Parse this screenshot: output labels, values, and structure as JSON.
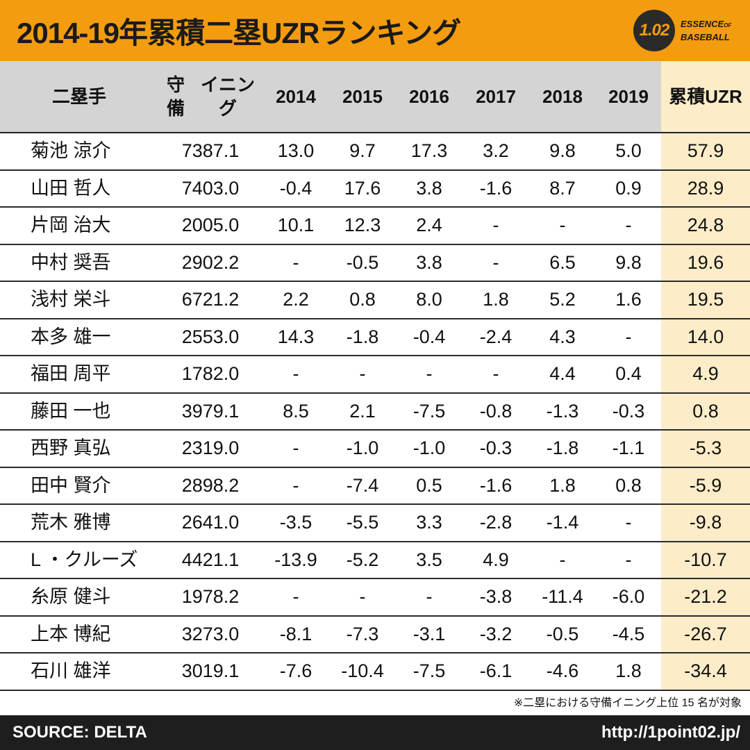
{
  "header": {
    "title": "2014-19年累積二塁UZRランキング",
    "logo": {
      "mark": "1.02",
      "line1": "ESSENCE",
      "of": "OF",
      "line2": "BASEBALL"
    }
  },
  "colors": {
    "header_bg": "#f39c0f",
    "table_header_bg": "#d4d4d4",
    "highlight_col": "#fdecc8",
    "footer_bg": "#1e1e1e"
  },
  "chart_data": {
    "type": "table",
    "title": "2014-19年累積二塁UZRランキング",
    "columns": [
      {
        "key": "name",
        "label": "二塁手"
      },
      {
        "key": "innings",
        "label": "守備\nイニング"
      },
      {
        "key": "y2014",
        "label": "2014"
      },
      {
        "key": "y2015",
        "label": "2015"
      },
      {
        "key": "y2016",
        "label": "2016"
      },
      {
        "key": "y2017",
        "label": "2017"
      },
      {
        "key": "y2018",
        "label": "2018"
      },
      {
        "key": "y2019",
        "label": "2019"
      },
      {
        "key": "total",
        "label": "累積\nUZR"
      }
    ],
    "rows": [
      [
        "菊池 涼介",
        "7387.1",
        "13.0",
        "9.7",
        "17.3",
        "3.2",
        "9.8",
        "5.0",
        "57.9"
      ],
      [
        "山田 哲人",
        "7403.0",
        "-0.4",
        "17.6",
        "3.8",
        "-1.6",
        "8.7",
        "0.9",
        "28.9"
      ],
      [
        "片岡 治大",
        "2005.0",
        "10.1",
        "12.3",
        "2.4",
        "-",
        "-",
        "-",
        "24.8"
      ],
      [
        "中村 奨吾",
        "2902.2",
        "-",
        "-0.5",
        "3.8",
        "-",
        "6.5",
        "9.8",
        "19.6"
      ],
      [
        "浅村 栄斗",
        "6721.2",
        "2.2",
        "0.8",
        "8.0",
        "1.8",
        "5.2",
        "1.6",
        "19.5"
      ],
      [
        "本多 雄一",
        "2553.0",
        "14.3",
        "-1.8",
        "-0.4",
        "-2.4",
        "4.3",
        "-",
        "14.0"
      ],
      [
        "福田 周平",
        "1782.0",
        "-",
        "-",
        "-",
        "-",
        "4.4",
        "0.4",
        "4.9"
      ],
      [
        "藤田 一也",
        "3979.1",
        "8.5",
        "2.1",
        "-7.5",
        "-0.8",
        "-1.3",
        "-0.3",
        "0.8"
      ],
      [
        "西野 真弘",
        "2319.0",
        "-",
        "-1.0",
        "-1.0",
        "-0.3",
        "-1.8",
        "-1.1",
        "-5.3"
      ],
      [
        "田中 賢介",
        "2898.2",
        "-",
        "-7.4",
        "0.5",
        "-1.6",
        "1.8",
        "0.8",
        "-5.9"
      ],
      [
        "荒木 雅博",
        "2641.0",
        "-3.5",
        "-5.5",
        "3.3",
        "-2.8",
        "-1.4",
        "-",
        "-9.8"
      ],
      [
        "L ・クルーズ",
        "4421.1",
        "-13.9",
        "-5.2",
        "3.5",
        "4.9",
        "-",
        "-",
        "-10.7"
      ],
      [
        "糸原 健斗",
        "1978.2",
        "-",
        "-",
        "-",
        "-3.8",
        "-11.4",
        "-6.0",
        "-21.2"
      ],
      [
        "上本 博紀",
        "3273.0",
        "-8.1",
        "-7.3",
        "-3.1",
        "-3.2",
        "-0.5",
        "-4.5",
        "-26.7"
      ],
      [
        "石川 雄洋",
        "3019.1",
        "-7.6",
        "-10.4",
        "-7.5",
        "-6.1",
        "-4.6",
        "1.8",
        "-34.4"
      ]
    ]
  },
  "note": "※二塁における守備イニング上位 15 名が対象",
  "footer": {
    "source": "SOURCE: DELTA",
    "url": "http://1point02.jp/"
  }
}
